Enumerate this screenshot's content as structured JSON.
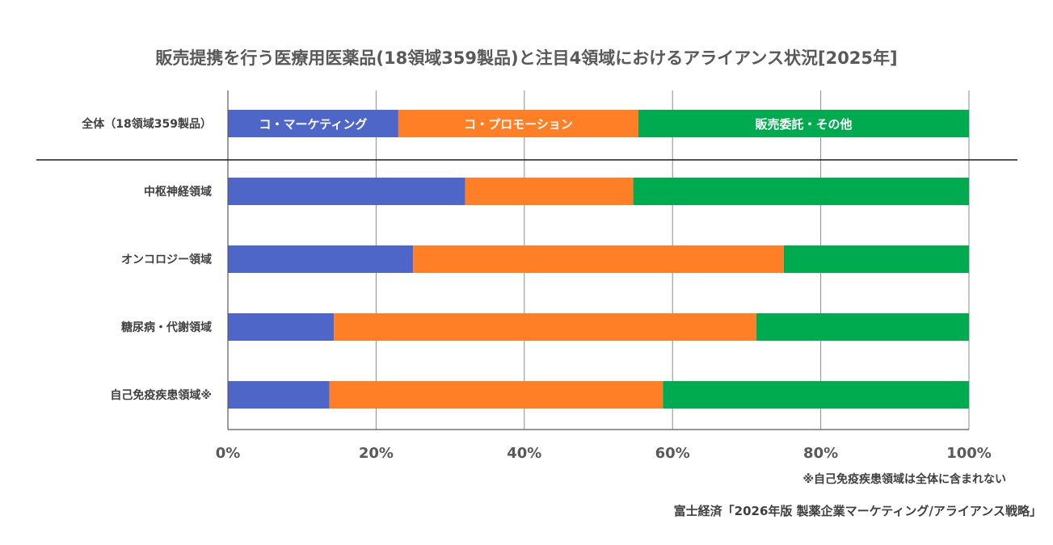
{
  "chart_data": {
    "type": "bar",
    "orientation": "horizontal",
    "stacked": true,
    "title": "販売提携を行う医療用医薬品(18領域359製品)と注目4領域におけるアライアンス状況[2025年]",
    "categories": [
      "全体（18領域359製品）",
      "中枢神経領域",
      "オンコロジー領域",
      "糖尿病・代謝領域",
      "自己免疫疾患領域※"
    ],
    "series": [
      {
        "name": "コ・マーケティング",
        "color": "#4E66C8",
        "values": [
          23,
          32,
          25,
          14.3,
          13.7
        ]
      },
      {
        "name": "コ・プロモーション",
        "color": "#FF7F27",
        "values": [
          32.4,
          22.7,
          50,
          57,
          45
        ]
      },
      {
        "name": "販売委託・その他",
        "color": "#00AA4F",
        "values": [
          44.6,
          45.3,
          25,
          28.7,
          41.3
        ]
      }
    ],
    "xlim": [
      0,
      100
    ],
    "x_ticks": [
      "0%",
      "20%",
      "40%",
      "60%",
      "80%",
      "100%"
    ],
    "grid": true,
    "legend": "inside the first bar",
    "note": "※自己免疫疾患領域は全体に含まれない",
    "source": "富士経済「2026年版 製薬企業マーケティング/アライアンス戦略」"
  }
}
